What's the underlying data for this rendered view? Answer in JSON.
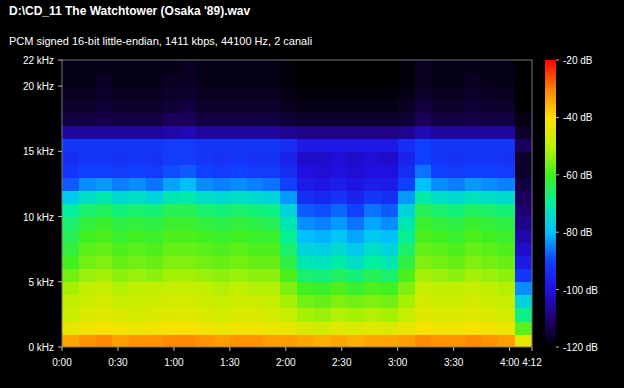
{
  "chart_data": {
    "type": "heatmap",
    "title": "D:\\CD_11 The Watchtower (Osaka '89).wav",
    "subtitle": "PCM signed 16-bit little-endian, 1411 kbps, 44100 Hz, 2 canali",
    "xlim": [
      0,
      252
    ],
    "ylim": [
      0,
      22
    ],
    "xticks": [
      {
        "value": 0,
        "label": "0:00"
      },
      {
        "value": 30,
        "label": "0:30"
      },
      {
        "value": 60,
        "label": "1:00"
      },
      {
        "value": 90,
        "label": "1:30"
      },
      {
        "value": 120,
        "label": "2:00"
      },
      {
        "value": 150,
        "label": "2:30"
      },
      {
        "value": 180,
        "label": "3:00"
      },
      {
        "value": 210,
        "label": "3:30"
      },
      {
        "value": 240,
        "label": "4:00"
      },
      {
        "value": 252,
        "label": "4:12"
      }
    ],
    "yticks": [
      {
        "value": 0,
        "label": "0 kHz"
      },
      {
        "value": 5,
        "label": "5 kHz"
      },
      {
        "value": 10,
        "label": "10 kHz"
      },
      {
        "value": 15,
        "label": "15 kHz"
      },
      {
        "value": 20,
        "label": "20 kHz"
      },
      {
        "value": 22,
        "label": "22 kHz"
      }
    ],
    "x_bins": [
      0,
      9,
      18,
      27,
      36,
      45,
      54,
      63,
      72,
      81,
      90,
      99,
      108,
      117,
      126,
      135,
      144,
      153,
      162,
      171,
      180,
      189,
      198,
      207,
      216,
      225,
      234,
      243,
      252
    ],
    "y_bins": [
      0,
      1,
      2,
      3,
      4,
      5,
      6,
      7,
      8,
      9,
      10,
      11,
      12,
      13,
      14,
      15,
      16,
      17,
      18,
      19,
      20,
      21,
      22
    ],
    "z": [
      [
        -34,
        -44,
        -48,
        -50,
        -52,
        -56,
        -60,
        -62,
        -64,
        -66,
        -70,
        -78,
        -88,
        -92,
        -94,
        -92,
        -106,
        -114,
        -116,
        -117,
        -118,
        -118
      ],
      [
        -32,
        -42,
        -46,
        -48,
        -50,
        -53,
        -56,
        -58,
        -60,
        -62,
        -66,
        -74,
        -84,
        -90,
        -92,
        -92,
        -106,
        -114,
        -116,
        -117,
        -118,
        -118
      ],
      [
        -31,
        -41,
        -45,
        -47,
        -49,
        -52,
        -55,
        -57,
        -59,
        -61,
        -65,
        -72,
        -83,
        -90,
        -92,
        -92,
        -106,
        -113,
        -115,
        -116,
        -117,
        -118
      ],
      [
        -33,
        -42,
        -46,
        -49,
        -51,
        -54,
        -57,
        -59,
        -61,
        -63,
        -67,
        -75,
        -85,
        -91,
        -93,
        -92,
        -106,
        -114,
        -116,
        -117,
        -118,
        -118
      ],
      [
        -32,
        -43,
        -47,
        -48,
        -50,
        -53,
        -56,
        -58,
        -60,
        -62,
        -66,
        -74,
        -84,
        -90,
        -92,
        -92,
        -106,
        -114,
        -116,
        -117,
        -118,
        -118
      ],
      [
        -32,
        -42,
        -46,
        -48,
        -50,
        -54,
        -57,
        -59,
        -61,
        -63,
        -67,
        -76,
        -86,
        -91,
        -93,
        -92,
        -106,
        -114,
        -116,
        -117,
        -118,
        -118
      ],
      [
        -31,
        -41,
        -45,
        -47,
        -49,
        -52,
        -55,
        -57,
        -59,
        -61,
        -64,
        -72,
        -82,
        -89,
        -91,
        -91,
        -105,
        -112,
        -115,
        -116,
        -117,
        -118
      ],
      [
        -31,
        -41,
        -45,
        -47,
        -49,
        -52,
        -55,
        -57,
        -59,
        -61,
        -64,
        -71,
        -80,
        -88,
        -91,
        -91,
        -104,
        -112,
        -114,
        -116,
        -117,
        -117
      ],
      [
        -32,
        -42,
        -46,
        -48,
        -50,
        -53,
        -56,
        -58,
        -60,
        -62,
        -66,
        -74,
        -84,
        -90,
        -92,
        -92,
        -106,
        -114,
        -116,
        -117,
        -118,
        -118
      ],
      [
        -33,
        -43,
        -47,
        -49,
        -51,
        -54,
        -57,
        -59,
        -61,
        -63,
        -67,
        -75,
        -85,
        -91,
        -93,
        -92,
        -106,
        -114,
        -116,
        -117,
        -118,
        -118
      ],
      [
        -32,
        -42,
        -46,
        -48,
        -50,
        -53,
        -56,
        -58,
        -60,
        -62,
        -66,
        -74,
        -84,
        -90,
        -92,
        -92,
        -106,
        -114,
        -116,
        -117,
        -118,
        -118
      ],
      [
        -32,
        -42,
        -46,
        -48,
        -51,
        -54,
        -57,
        -59,
        -61,
        -63,
        -67,
        -75,
        -85,
        -91,
        -93,
        -92,
        -106,
        -114,
        -116,
        -117,
        -118,
        -118
      ],
      [
        -33,
        -43,
        -47,
        -49,
        -51,
        -54,
        -57,
        -59,
        -61,
        -64,
        -68,
        -76,
        -86,
        -91,
        -93,
        -92,
        -106,
        -114,
        -116,
        -117,
        -118,
        -118
      ],
      [
        -33,
        -44,
        -49,
        -52,
        -55,
        -59,
        -63,
        -66,
        -69,
        -72,
        -76,
        -83,
        -90,
        -94,
        -96,
        -94,
        -107,
        -115,
        -117,
        -118,
        -119,
        -119
      ],
      [
        -34,
        -46,
        -52,
        -56,
        -60,
        -66,
        -72,
        -76,
        -80,
        -84,
        -88,
        -94,
        -98,
        -100,
        -102,
        -98,
        -108,
        -116,
        -118,
        -119,
        -120,
        -120
      ],
      [
        -35,
        -47,
        -53,
        -57,
        -61,
        -67,
        -73,
        -77,
        -81,
        -85,
        -89,
        -95,
        -99,
        -101,
        -102,
        -98,
        -108,
        -116,
        -118,
        -119,
        -120,
        -120
      ],
      [
        -34,
        -45,
        -51,
        -55,
        -59,
        -65,
        -71,
        -75,
        -79,
        -83,
        -87,
        -93,
        -97,
        -100,
        -101,
        -98,
        -108,
        -116,
        -118,
        -119,
        -120,
        -120
      ],
      [
        -35,
        -46,
        -52,
        -56,
        -61,
        -67,
        -74,
        -78,
        -82,
        -86,
        -90,
        -96,
        -99,
        -101,
        -102,
        -98,
        -108,
        -116,
        -118,
        -119,
        -120,
        -120
      ],
      [
        -34,
        -45,
        -51,
        -55,
        -59,
        -64,
        -70,
        -74,
        -78,
        -82,
        -86,
        -92,
        -97,
        -100,
        -101,
        -98,
        -108,
        -116,
        -118,
        -119,
        -120,
        -120
      ],
      [
        -34,
        -46,
        -52,
        -56,
        -60,
        -66,
        -72,
        -76,
        -80,
        -84,
        -88,
        -94,
        -98,
        -100,
        -102,
        -98,
        -108,
        -116,
        -118,
        -119,
        -120,
        -120
      ],
      [
        -33,
        -44,
        -49,
        -52,
        -55,
        -59,
        -63,
        -66,
        -69,
        -72,
        -76,
        -83,
        -90,
        -94,
        -96,
        -94,
        -107,
        -115,
        -117,
        -118,
        -119,
        -119
      ],
      [
        -31,
        -41,
        -45,
        -47,
        -49,
        -52,
        -55,
        -57,
        -59,
        -61,
        -64,
        -71,
        -80,
        -86,
        -90,
        -90,
        -104,
        -112,
        -114,
        -116,
        -117,
        -117
      ],
      [
        -32,
        -42,
        -46,
        -48,
        -50,
        -53,
        -56,
        -58,
        -60,
        -62,
        -66,
        -74,
        -84,
        -90,
        -92,
        -92,
        -106,
        -114,
        -116,
        -117,
        -118,
        -118
      ],
      [
        -32,
        -42,
        -46,
        -48,
        -50,
        -54,
        -57,
        -59,
        -61,
        -63,
        -67,
        -75,
        -85,
        -91,
        -93,
        -92,
        -106,
        -114,
        -116,
        -117,
        -118,
        -118
      ],
      [
        -31,
        -41,
        -45,
        -47,
        -49,
        -52,
        -55,
        -57,
        -59,
        -61,
        -65,
        -73,
        -83,
        -90,
        -92,
        -92,
        -106,
        -113,
        -115,
        -116,
        -117,
        -118
      ],
      [
        -32,
        -42,
        -46,
        -48,
        -50,
        -53,
        -56,
        -58,
        -60,
        -62,
        -66,
        -74,
        -84,
        -90,
        -92,
        -92,
        -106,
        -114,
        -116,
        -117,
        -118,
        -118
      ],
      [
        -33,
        -43,
        -47,
        -49,
        -51,
        -54,
        -57,
        -59,
        -61,
        -63,
        -67,
        -75,
        -85,
        -91,
        -93,
        -92,
        -106,
        -114,
        -116,
        -117,
        -118,
        -118
      ],
      [
        -44,
        -58,
        -68,
        -76,
        -84,
        -92,
        -98,
        -102,
        -105,
        -108,
        -110,
        -112,
        -114,
        -116,
        -116,
        -112,
        -116,
        -118,
        -120,
        -120,
        -120,
        -120
      ]
    ],
    "colorbar": {
      "range": [
        -120,
        -20
      ],
      "ticks": [
        {
          "value": -20,
          "label": "-20 dB"
        },
        {
          "value": -40,
          "label": "-40 dB"
        },
        {
          "value": -60,
          "label": "-60 dB"
        },
        {
          "value": -80,
          "label": "-80 dB"
        },
        {
          "value": -100,
          "label": "-100 dB"
        },
        {
          "value": -120,
          "label": "-120 dB"
        }
      ]
    }
  }
}
